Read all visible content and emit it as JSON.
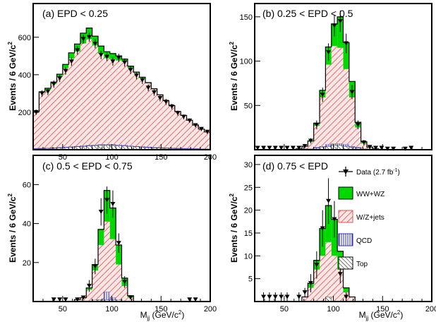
{
  "colors": {
    "wwwz": "#00d800",
    "wjets_line": "#e05050",
    "wjets_fill": "#fce6e6",
    "qcd": "#3030b0",
    "top": "#000000",
    "data": "#000000"
  },
  "legend": {
    "data": "Data (2.7 fb",
    "data_sup": "-1",
    "data_close": ")",
    "wwwz": "WW+WZ",
    "wjets": "W/Z+jets",
    "qcd": "QCD",
    "top": "Top"
  },
  "chart_data": [
    {
      "type": "bar",
      "label": "(a)   EPD < 0.25",
      "ylabel": "Events / 6 GeV/c",
      "ylabel_sup": "2",
      "xlabel": "M",
      "xlabel_sub": "jj",
      "xlabel_rest": " (GeV/c",
      "xlabel_sup": "2",
      "xlabel_close": ")",
      "xlim": [
        20,
        200
      ],
      "ylim": [
        0,
        780
      ],
      "xticks": [
        50,
        100,
        150,
        200
      ],
      "yticks": [
        200,
        400,
        600
      ],
      "bin_width": 6,
      "bin_edges_start": 20,
      "wjets": [
        190,
        295,
        310,
        340,
        375,
        420,
        470,
        505,
        545,
        565,
        530,
        485,
        460,
        455,
        450,
        445,
        415,
        390,
        365,
        340,
        310,
        280,
        250,
        225,
        195,
        175,
        150,
        125,
        105,
        90
      ],
      "wwwz": [
        5,
        5,
        8,
        10,
        15,
        20,
        30,
        40,
        55,
        60,
        50,
        40,
        35,
        30,
        25,
        15,
        10,
        5,
        5,
        3,
        2,
        1,
        1,
        0,
        0,
        0,
        0,
        0,
        0,
        0
      ],
      "qcd": [
        3,
        3,
        3,
        3,
        3,
        3,
        3,
        3,
        4,
        4,
        4,
        4,
        4,
        4,
        4,
        4,
        3,
        3,
        3,
        3,
        3,
        3,
        3,
        3,
        3,
        3,
        3,
        3,
        2,
        2
      ],
      "top": [
        5,
        6,
        7,
        8,
        10,
        12,
        14,
        16,
        18,
        20,
        22,
        24,
        24,
        24,
        22,
        20,
        18,
        16,
        14,
        12,
        10,
        9,
        8,
        7,
        6,
        5,
        4,
        4,
        3,
        3
      ],
      "data": [
        200,
        300,
        310,
        350,
        380,
        420,
        470,
        530,
        590,
        600,
        565,
        505,
        495,
        470,
        490,
        465,
        425,
        395,
        370,
        330,
        305,
        275,
        255,
        230,
        195,
        175,
        155,
        130,
        110,
        95
      ],
      "data_err": [
        14,
        17,
        18,
        19,
        19,
        20,
        22,
        23,
        24,
        24,
        24,
        22,
        22,
        22,
        22,
        22,
        21,
        20,
        19,
        18,
        17,
        17,
        16,
        15,
        14,
        13,
        12,
        11,
        10,
        10
      ]
    },
    {
      "type": "bar",
      "label": "(b)   0.25 < EPD < 0.5",
      "ylabel": "Events / 6 GeV/c",
      "ylabel_sup": "2",
      "xlabel": "",
      "xlim": [
        20,
        200
      ],
      "ylim": [
        0,
        165
      ],
      "xticks": [],
      "yticks": [
        50,
        100,
        150
      ],
      "bin_width": 6,
      "bin_edges_start": 20,
      "wjets": [
        0,
        0,
        0,
        0,
        0,
        0,
        0,
        1,
        3,
        8,
        24,
        55,
        90,
        110,
        108,
        85,
        55,
        22,
        6,
        2,
        1,
        0,
        0,
        0,
        0,
        0,
        0,
        0,
        0,
        0
      ],
      "wwwz": [
        0,
        0,
        0,
        0,
        0,
        0,
        0,
        0,
        0,
        1,
        3,
        8,
        20,
        25,
        35,
        30,
        18,
        6,
        2,
        0,
        0,
        0,
        0,
        0,
        0,
        0,
        0,
        0,
        0,
        0
      ],
      "qcd": [
        0,
        0,
        0,
        0,
        0,
        0,
        0,
        0,
        0,
        0,
        1,
        1,
        2,
        2,
        2,
        2,
        1,
        1,
        0,
        0,
        0,
        0,
        0,
        0,
        0,
        0,
        0,
        0,
        0,
        0
      ],
      "top": [
        0,
        0,
        0,
        0,
        0,
        0,
        0,
        0,
        1,
        1,
        2,
        3,
        4,
        5,
        5,
        4,
        3,
        2,
        1,
        1,
        0,
        0,
        0,
        0,
        0,
        0,
        0,
        0,
        0,
        0
      ],
      "data": [
        2,
        2,
        2,
        2,
        2,
        2,
        2,
        2,
        4,
        10,
        28,
        62,
        110,
        140,
        145,
        120,
        65,
        28,
        8,
        3,
        2,
        2,
        1,
        1,
        0,
        1,
        2,
        0,
        0,
        0
      ],
      "data_err": [
        1,
        1,
        1,
        1,
        1,
        1,
        1,
        1,
        2,
        3,
        5,
        8,
        10,
        12,
        12,
        11,
        8,
        5,
        3,
        2,
        1,
        1,
        1,
        1,
        0,
        1,
        1,
        0,
        0,
        0
      ]
    },
    {
      "type": "bar",
      "label": "(c)   0.5 < EPD < 0.75",
      "ylabel": "Events / 6 GeV/c",
      "ylabel_sup": "2",
      "xlabel": "M",
      "xlabel_sub": "jj",
      "xlabel_rest": " (GeV/c",
      "xlabel_sup": "2",
      "xlabel_close": ")",
      "xlim": [
        20,
        200
      ],
      "ylim": [
        0,
        75
      ],
      "xticks": [
        50,
        100,
        150,
        200
      ],
      "yticks": [
        20,
        40,
        60
      ],
      "bin_width": 6,
      "bin_edges_start": 20,
      "wjets": [
        0,
        0,
        0,
        0,
        0,
        0,
        0,
        1,
        2,
        6,
        15,
        28,
        36,
        30,
        18,
        8,
        2,
        0,
        0,
        0,
        0,
        0,
        0,
        0,
        0,
        0,
        0,
        0,
        0,
        0
      ],
      "wwwz": [
        0,
        0,
        0,
        0,
        0,
        0,
        0,
        0,
        0,
        1,
        3,
        8,
        16,
        16,
        10,
        4,
        1,
        0,
        0,
        0,
        0,
        0,
        0,
        0,
        0,
        0,
        0,
        0,
        0,
        0
      ],
      "qcd": [
        0,
        0,
        0,
        0,
        0,
        0,
        0,
        0,
        0,
        0,
        0,
        0,
        4,
        1,
        0,
        0,
        0,
        0,
        0,
        0,
        0,
        0,
        0,
        0,
        0,
        0,
        0,
        0,
        0,
        0
      ],
      "top": [
        0,
        0,
        0,
        0,
        0,
        0,
        0,
        0,
        0,
        0,
        1,
        1,
        1,
        1,
        1,
        0,
        0,
        0,
        0,
        0,
        0,
        0,
        0,
        0,
        0,
        0,
        0,
        0,
        0,
        0
      ],
      "data": [
        0,
        0,
        0,
        1,
        1,
        1,
        0,
        1,
        2,
        8,
        18,
        46,
        52,
        50,
        30,
        10,
        2,
        0,
        0,
        0,
        0,
        0,
        0,
        0,
        0,
        0,
        1,
        1,
        0,
        0
      ],
      "data_err": [
        0,
        0,
        0,
        1,
        1,
        1,
        0,
        1,
        1,
        3,
        4,
        7,
        7,
        7,
        5,
        3,
        1,
        0,
        0,
        0,
        0,
        0,
        0,
        0,
        0,
        0,
        1,
        1,
        0,
        0
      ]
    },
    {
      "type": "bar",
      "label": "(d)   0.75 < EPD",
      "ylabel": "Events / 6 GeV/c",
      "ylabel_sup": "2",
      "xlabel": "M",
      "xlabel_sub": "jj",
      "xlabel_rest": " (GeV/c",
      "xlabel_sup": "2",
      "xlabel_close": ")",
      "xlim": [
        20,
        200
      ],
      "ylim": [
        0,
        32
      ],
      "xticks": [
        50,
        100,
        150,
        200
      ],
      "yticks": [
        5,
        10,
        15,
        20,
        25,
        30
      ],
      "bin_width": 6,
      "bin_edges_start": 20,
      "wjets": [
        0,
        0,
        0,
        0,
        0,
        0,
        0,
        0,
        1,
        3,
        7,
        10,
        12,
        10,
        7,
        2,
        1,
        0,
        0,
        0,
        0,
        0,
        0,
        0,
        0,
        0,
        0,
        0,
        0,
        0
      ],
      "wwwz": [
        0,
        0,
        0,
        0,
        0,
        0,
        0,
        0,
        0,
        1,
        2,
        6,
        8,
        8,
        4,
        1,
        0,
        0,
        0,
        0,
        0,
        0,
        0,
        0,
        0,
        0,
        0,
        0,
        0,
        0
      ],
      "qcd": [
        0,
        0,
        0,
        0,
        0,
        0,
        0,
        0,
        0,
        0,
        0,
        0,
        0,
        0,
        0,
        0,
        0,
        0,
        0,
        0,
        0,
        0,
        0,
        0,
        0,
        0,
        0,
        0,
        0,
        0
      ],
      "top": [
        0,
        0,
        0,
        0,
        0,
        0,
        0,
        0,
        0,
        0,
        0,
        0,
        1,
        0,
        0,
        0,
        0,
        0,
        0,
        0,
        0,
        0,
        0,
        0,
        0,
        0,
        0,
        0,
        0,
        0
      ],
      "data": [
        0,
        1,
        1,
        1,
        1,
        1,
        0,
        1,
        2,
        4,
        8,
        16,
        22,
        18,
        6,
        1,
        0,
        0,
        0,
        0,
        0,
        0,
        0,
        0,
        0,
        0,
        0,
        0,
        0,
        0
      ],
      "data_err": [
        0,
        1,
        1,
        1,
        1,
        1,
        0,
        1,
        1,
        2,
        3,
        4,
        5,
        4,
        2,
        1,
        0,
        0,
        0,
        0,
        0,
        0,
        0,
        0,
        0,
        0,
        0,
        0,
        0,
        0
      ]
    }
  ]
}
